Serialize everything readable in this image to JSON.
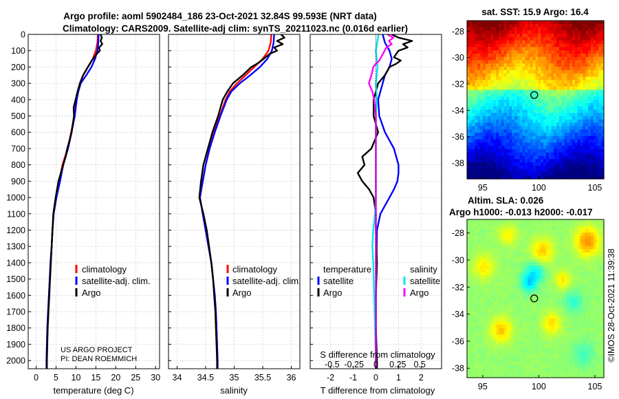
{
  "title_line1": "Argo profile: aoml 5902484_186 23-Oct-2021 32.84S 99.593E (NRT data)",
  "title_line2": "Climatology: CARS2009. Satellite-adj clim: synTS_20211023.nc (0.016d earlier)",
  "credit_line1": "US ARGO PROJECT",
  "credit_line2": "PI: DEAN ROEMMICH",
  "imos_stamp": "©IMOS 28-Oct-2021 11:39:38",
  "colors": {
    "climatology": "#ff0000",
    "satellite": "#0000ff",
    "argo": "#000000",
    "satellite_salinity": "#00e5ee",
    "argo_salinity": "#ff00ff"
  },
  "chart_data": [
    {
      "type": "line",
      "name": "temperature-profile",
      "xlabel": "temperature (deg C)",
      "ylabel": "",
      "xlim": [
        -2,
        31
      ],
      "ylim": [
        2050,
        0
      ],
      "xticks": [
        0,
        5,
        10,
        15,
        20,
        25,
        30
      ],
      "yticks": [
        0,
        100,
        200,
        300,
        400,
        500,
        600,
        700,
        800,
        900,
        1000,
        1100,
        1200,
        1300,
        1400,
        1500,
        1600,
        1700,
        1800,
        1900,
        2000
      ],
      "legend": [
        "climatology",
        "satellite-adj. clim.",
        "Argo"
      ],
      "grid": true,
      "series": [
        {
          "name": "climatology",
          "depth": [
            0,
            50,
            100,
            150,
            200,
            250,
            300,
            350,
            400,
            500,
            600,
            700,
            800,
            900,
            1000,
            1100,
            1200,
            1300,
            1400,
            1500,
            1600,
            1700,
            1800,
            1900,
            2000,
            2050
          ],
          "values": [
            15.5,
            15.4,
            15.0,
            14.2,
            13.0,
            11.8,
            11.0,
            10.5,
            10.1,
            9.6,
            8.8,
            7.9,
            6.6,
            5.8,
            5.0,
            4.4,
            4.1,
            3.9,
            3.6,
            3.4,
            3.2,
            3.0,
            2.8,
            2.7,
            2.6,
            2.6
          ]
        },
        {
          "name": "satellite-adj. clim.",
          "depth": [
            0,
            50,
            100,
            150,
            200,
            250,
            300,
            350,
            400,
            500,
            600,
            700,
            800,
            900,
            1000,
            1100,
            1200,
            1300,
            1400,
            1500,
            1600,
            1700,
            1800,
            1900,
            2000,
            2050
          ],
          "values": [
            15.7,
            15.6,
            15.4,
            14.8,
            13.9,
            12.6,
            11.2,
            10.6,
            10.2,
            9.7,
            8.9,
            8.0,
            6.8,
            6.0,
            5.1,
            4.4,
            4.1,
            3.9,
            3.6,
            3.4,
            3.2,
            3.0,
            2.8,
            2.7,
            2.6,
            2.6
          ]
        },
        {
          "name": "Argo",
          "depth": [
            0,
            20,
            40,
            60,
            80,
            100,
            120,
            140,
            160,
            180,
            200,
            250,
            300,
            350,
            400,
            450,
            500,
            550,
            600,
            650,
            700,
            750,
            800,
            850,
            900,
            1000,
            1100,
            1200,
            1300,
            1400,
            1500,
            1600,
            1700,
            1800,
            1900,
            2000,
            2050
          ],
          "values": [
            16.2,
            16.5,
            16.2,
            16.6,
            15.8,
            16.0,
            15.2,
            14.6,
            14.0,
            13.5,
            13.0,
            11.8,
            11.0,
            10.4,
            9.9,
            9.4,
            9.5,
            9.2,
            8.9,
            8.4,
            7.8,
            7.4,
            6.8,
            6.2,
            5.6,
            4.9,
            4.3,
            4.1,
            3.9,
            3.7,
            3.5,
            3.3,
            3.1,
            2.9,
            2.8,
            2.7,
            2.7
          ]
        }
      ]
    },
    {
      "type": "line",
      "name": "salinity-profile",
      "xlabel": "salinity",
      "ylabel": "",
      "xlim": [
        33.85,
        36.15
      ],
      "ylim": [
        2050,
        0
      ],
      "xticks": [
        34,
        34.5,
        35,
        35.5,
        36
      ],
      "legend": [
        "climatology",
        "satellite-adj. clim.",
        "Argo"
      ],
      "grid": true,
      "series": [
        {
          "name": "climatology",
          "depth": [
            0,
            50,
            100,
            150,
            200,
            250,
            300,
            350,
            400,
            500,
            600,
            700,
            800,
            900,
            1000,
            1100,
            1200,
            1300,
            1400,
            1500,
            1600,
            1700,
            1800,
            1900,
            2000,
            2050
          ],
          "values": [
            35.65,
            35.64,
            35.6,
            35.5,
            35.35,
            35.2,
            35.05,
            34.92,
            34.85,
            34.75,
            34.65,
            34.57,
            34.5,
            34.45,
            34.4,
            34.45,
            34.5,
            34.55,
            34.6,
            34.63,
            34.66,
            34.68,
            34.69,
            34.7,
            34.71,
            34.71
          ]
        },
        {
          "name": "satellite-adj. clim.",
          "depth": [
            0,
            50,
            100,
            150,
            200,
            250,
            300,
            350,
            400,
            500,
            600,
            700,
            800,
            900,
            1000,
            1100,
            1200,
            1300,
            1400,
            1500,
            1600,
            1700,
            1800,
            1900,
            2000,
            2050
          ],
          "values": [
            35.7,
            35.69,
            35.66,
            35.58,
            35.45,
            35.28,
            35.1,
            34.95,
            34.87,
            34.76,
            34.66,
            34.57,
            34.5,
            34.45,
            34.4,
            34.45,
            34.5,
            34.55,
            34.6,
            34.63,
            34.66,
            34.68,
            34.69,
            34.7,
            34.71,
            34.71
          ]
        },
        {
          "name": "Argo",
          "depth": [
            0,
            20,
            40,
            60,
            80,
            100,
            120,
            140,
            160,
            180,
            200,
            250,
            300,
            350,
            400,
            500,
            600,
            700,
            800,
            900,
            1000,
            1100,
            1200,
            1300,
            1400,
            1500,
            1600,
            1700,
            1800,
            1900,
            2000,
            2050
          ],
          "values": [
            35.82,
            35.88,
            35.75,
            35.85,
            35.7,
            35.75,
            35.62,
            35.55,
            35.48,
            35.4,
            35.3,
            35.15,
            34.98,
            34.88,
            34.8,
            34.72,
            34.62,
            34.54,
            34.46,
            34.42,
            34.39,
            34.46,
            34.52,
            34.56,
            34.6,
            34.63,
            34.65,
            34.67,
            34.68,
            34.69,
            34.7,
            34.7
          ]
        }
      ]
    },
    {
      "type": "line",
      "name": "difference-profile",
      "xlabel": "T difference from climatology",
      "top_axis_label": "S difference from climatology",
      "xlim": [
        -2.9,
        2.9
      ],
      "ylim": [
        2050,
        0
      ],
      "xticks": [
        -2,
        -1,
        0,
        1,
        2
      ],
      "top_ticks": [
        "-0.5",
        "-0.25",
        "0",
        "0.25",
        "0.5"
      ],
      "top_tick_values": [
        -0.5,
        -0.25,
        0,
        0.25,
        0.5
      ],
      "legend_headers": [
        "temperature",
        "salinity"
      ],
      "legend": [
        "satellite",
        "Argo",
        "satellite",
        "Argo"
      ],
      "grid": true,
      "series": [
        {
          "name": "temperature satellite",
          "depth": [
            0,
            50,
            100,
            150,
            200,
            250,
            300,
            350,
            400,
            500,
            600,
            700,
            800,
            850,
            900,
            950,
            1000,
            1050,
            1100,
            1200,
            1400,
            1600,
            1800,
            2000,
            2050
          ],
          "values": [
            0.3,
            0.4,
            0.6,
            0.7,
            0.6,
            0.4,
            0.3,
            0.2,
            0.1,
            0.15,
            0.4,
            0.8,
            1.0,
            1.0,
            0.95,
            0.8,
            0.6,
            0.4,
            0.2,
            0.05,
            0.02,
            0.0,
            0.0,
            0.0,
            0.0
          ]
        },
        {
          "name": "temperature Argo",
          "depth": [
            0,
            20,
            40,
            60,
            80,
            100,
            120,
            140,
            160,
            180,
            200,
            250,
            300,
            350,
            400,
            500,
            600,
            700,
            750,
            800,
            850,
            900,
            950,
            1000,
            1100,
            1200,
            1400,
            1600,
            1800,
            2000,
            2050
          ],
          "values": [
            0.7,
            1.0,
            1.6,
            1.2,
            1.4,
            1.0,
            0.9,
            0.8,
            1.1,
            0.9,
            0.6,
            0.4,
            0.1,
            0.0,
            -0.1,
            -0.1,
            0.1,
            -0.2,
            -0.6,
            -0.5,
            -0.8,
            -0.6,
            -0.3,
            -0.1,
            0.0,
            0.0,
            0.05,
            0.0,
            0.0,
            0.05,
            0.05
          ]
        },
        {
          "name": "salinity satellite",
          "depth": [
            0,
            100,
            200,
            300,
            400,
            500,
            600,
            800,
            1000,
            1100,
            1200,
            1300,
            1400,
            1600,
            1800,
            2000,
            2050
          ],
          "values": [
            0.03,
            0.0,
            0.02,
            0.0,
            0.01,
            0.0,
            0.0,
            0.0,
            0.0,
            -0.01,
            -0.03,
            -0.04,
            -0.03,
            -0.02,
            -0.01,
            0.0,
            0.0
          ]
        },
        {
          "name": "salinity Argo",
          "depth": [
            0,
            20,
            40,
            60,
            80,
            100,
            120,
            140,
            160,
            180,
            200,
            250,
            300,
            350,
            400,
            500,
            600,
            800,
            1000,
            1200,
            1400,
            1600,
            1800,
            2000,
            2050
          ],
          "values": [
            0.13,
            0.2,
            0.15,
            0.18,
            0.12,
            0.1,
            0.08,
            0.06,
            0.04,
            0.0,
            -0.03,
            -0.05,
            -0.08,
            -0.04,
            -0.02,
            0.0,
            0.0,
            0.0,
            0.0,
            0.0,
            0.0,
            0.0,
            0.0,
            0.0,
            0.0
          ]
        }
      ]
    },
    {
      "type": "heatmap",
      "name": "sst-map",
      "title": "sat. SST: 15.9 Argo: 16.4",
      "xlim": [
        93.6,
        105.8
      ],
      "ylim": [
        -39.2,
        -27.2
      ],
      "xticks": [
        95,
        100,
        105
      ],
      "yticks": [
        -28,
        -30,
        -32,
        -34,
        -36,
        -38
      ],
      "marker": {
        "lon": 99.593,
        "lat": -32.84
      }
    },
    {
      "type": "heatmap",
      "name": "sla-map",
      "title_line1": "Altim. SLA: 0.026",
      "title_line2": "Argo h1000: -0.013 h2000: -0.017",
      "xlim": [
        93.6,
        105.8
      ],
      "ylim": [
        -38.7,
        -27.0
      ],
      "xticks": [
        95,
        100,
        105
      ],
      "yticks": [
        -28,
        -30,
        -32,
        -34,
        -36,
        -38
      ],
      "marker": {
        "lon": 99.593,
        "lat": -32.84
      }
    }
  ]
}
